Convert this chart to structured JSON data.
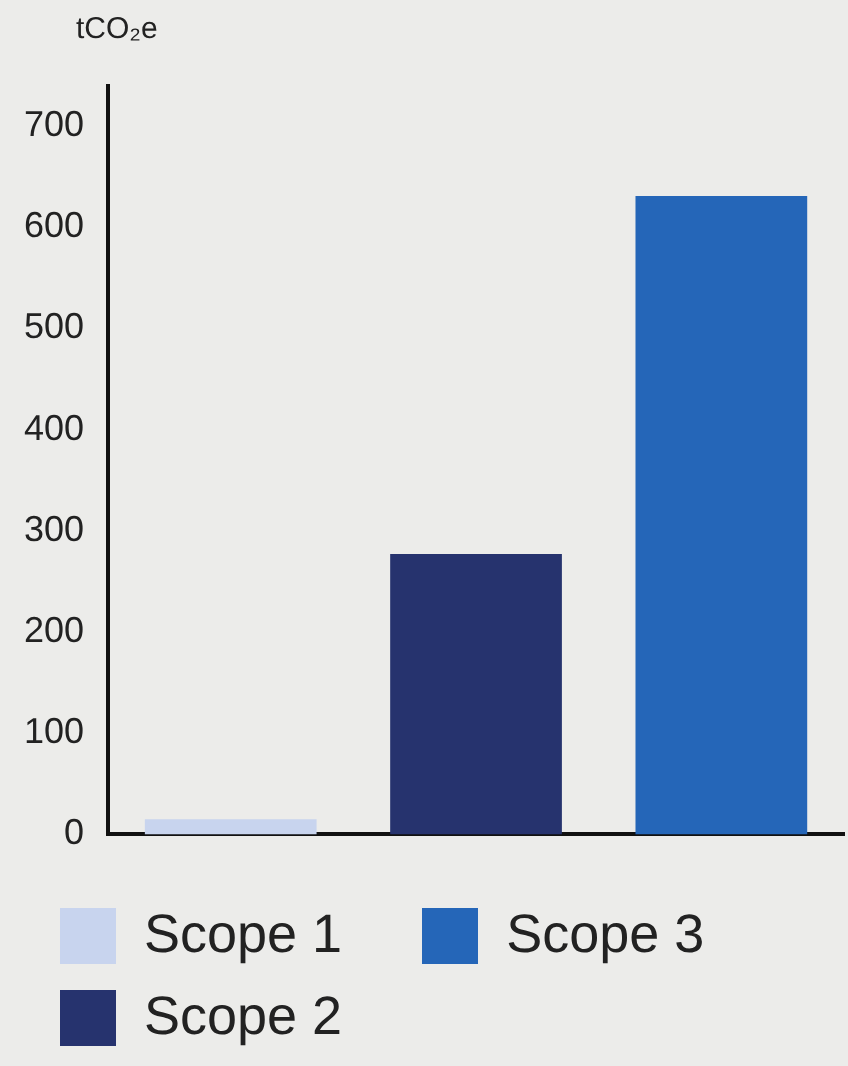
{
  "chart_data": {
    "type": "bar",
    "ylabel": "tCO₂e",
    "categories": [
      null,
      null,
      null
    ],
    "series": [
      {
        "name": "Scope 1",
        "color": "#c8d4ee",
        "values": [
          15,
          null,
          null
        ]
      },
      {
        "name": "Scope 2",
        "color": "#26336e",
        "values": [
          null,
          277,
          null
        ]
      },
      {
        "name": "Scope 3",
        "color": "#2566b8",
        "values": [
          null,
          null,
          631
        ]
      }
    ],
    "ylim": [
      0,
      740
    ],
    "yticks": [
      0,
      100,
      200,
      300,
      400,
      500,
      600,
      700
    ],
    "legend": "bottom",
    "tick_labels": "y"
  }
}
